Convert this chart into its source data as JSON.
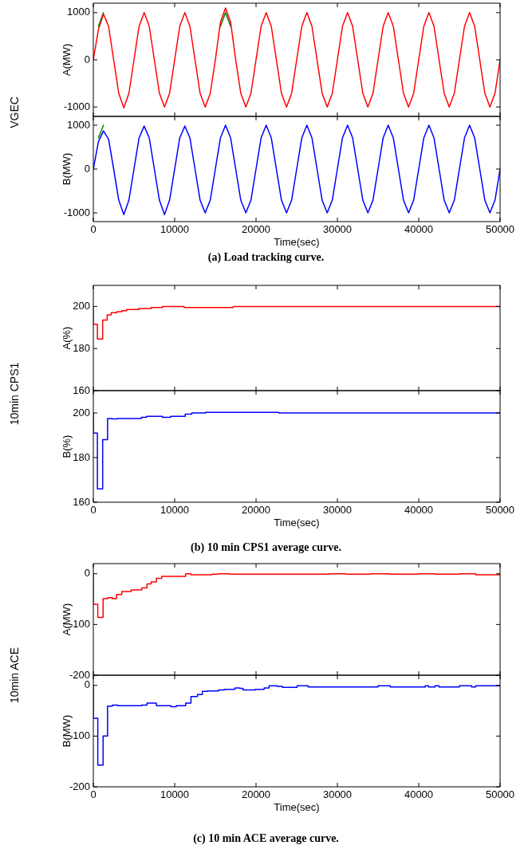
{
  "chart_data": [
    {
      "type": "line",
      "ylabel": "A(MW)",
      "annotations": [
        "VGEC"
      ],
      "tick_labels": "y",
      "xlim": [
        0,
        50000
      ],
      "xticks": [
        0,
        10000,
        20000,
        30000,
        40000,
        50000
      ],
      "ylim": [
        -1200,
        1200
      ],
      "yticks": [
        -1000,
        0,
        1000
      ],
      "x": [
        0,
        625,
        1250,
        1875,
        2500,
        3125,
        3750,
        4375,
        5000,
        5625,
        6250,
        6875,
        7500,
        8125,
        8750,
        9375,
        10000,
        10625,
        11250,
        11875,
        12500,
        13125,
        13750,
        14375,
        15000,
        15625,
        16250,
        16875,
        17500,
        18125,
        18750,
        19375,
        20000,
        20625,
        21250,
        21875,
        22500,
        23125,
        23750,
        24375,
        25000,
        25625,
        26250,
        26875,
        27500,
        28125,
        28750,
        29375,
        30000,
        30625,
        31250,
        31875,
        32500,
        33125,
        33750,
        34375,
        35000,
        35625,
        36250,
        36875,
        37500,
        38125,
        38750,
        39375,
        40000,
        40625,
        41250,
        41875,
        42500,
        43125,
        43750,
        44375,
        45000,
        45625,
        46250,
        46875,
        47500,
        48125,
        48750,
        49375,
        50000
      ],
      "series": [
        {
          "color": "#008000",
          "values": [
            null,
            710,
            1000,
            null,
            null,
            null,
            null,
            null,
            null,
            null,
            null,
            null,
            null,
            null,
            null,
            null,
            null,
            null,
            null,
            null,
            null,
            null,
            null,
            null,
            null,
            710,
            1000,
            710,
            null,
            null,
            null,
            null,
            null,
            null,
            null,
            null,
            null,
            null,
            null,
            null,
            null,
            null,
            null,
            null,
            null,
            null,
            null,
            null,
            null,
            null,
            null,
            null,
            null,
            null,
            null,
            null,
            null,
            null,
            null,
            null,
            null,
            null,
            null,
            null,
            null,
            null,
            null,
            null,
            null,
            null,
            null,
            null,
            null,
            null,
            null,
            null,
            null,
            null,
            null,
            null,
            null
          ]
        },
        {
          "color": "#ff0000",
          "values": [
            0,
            640,
            970,
            710,
            0,
            -710,
            -1020,
            -710,
            0,
            710,
            1000,
            710,
            0,
            -710,
            -1000,
            -710,
            0,
            710,
            1000,
            710,
            0,
            -710,
            -1000,
            -710,
            0,
            800,
            1100,
            800,
            0,
            -710,
            -1000,
            -710,
            0,
            710,
            1000,
            710,
            0,
            -710,
            -1000,
            -710,
            0,
            710,
            1000,
            710,
            0,
            -710,
            -1000,
            -710,
            0,
            710,
            1000,
            710,
            0,
            -710,
            -1000,
            -710,
            0,
            710,
            1000,
            710,
            0,
            -710,
            -1000,
            -710,
            0,
            710,
            1000,
            710,
            0,
            -710,
            -1000,
            -710,
            0,
            710,
            1000,
            710,
            0,
            -710,
            -1000,
            -710,
            0
          ]
        }
      ]
    },
    {
      "type": "line",
      "ylabel": "B(MW)",
      "xlabel": "Time(sec)",
      "annotations": [
        "(a) Load tracking curve."
      ],
      "xlim": [
        0,
        50000
      ],
      "xticks": [
        0,
        10000,
        20000,
        30000,
        40000,
        50000
      ],
      "ylim": [
        -1200,
        1200
      ],
      "yticks": [
        -1000,
        0,
        1000
      ],
      "x": [
        0,
        625,
        1250,
        1875,
        2500,
        3125,
        3750,
        4375,
        5000,
        5625,
        6250,
        6875,
        7500,
        8125,
        8750,
        9375,
        10000,
        10625,
        11250,
        11875,
        12500,
        13125,
        13750,
        14375,
        15000,
        15625,
        16250,
        16875,
        17500,
        18125,
        18750,
        19375,
        20000,
        20625,
        21250,
        21875,
        22500,
        23125,
        23750,
        24375,
        25000,
        25625,
        26250,
        26875,
        27500,
        28125,
        28750,
        29375,
        30000,
        30625,
        31250,
        31875,
        32500,
        33125,
        33750,
        34375,
        35000,
        35625,
        36250,
        36875,
        37500,
        38125,
        38750,
        39375,
        40000,
        40625,
        41250,
        41875,
        42500,
        43125,
        43750,
        44375,
        45000,
        45625,
        46250,
        46875,
        47500,
        48125,
        48750,
        49375,
        50000
      ],
      "series": [
        {
          "color": "#008000",
          "values": [
            null,
            710,
            1000,
            null,
            null,
            null,
            null,
            null,
            null,
            null,
            null,
            null,
            null,
            null,
            null,
            null,
            null,
            null,
            null,
            null,
            null,
            null,
            null,
            null,
            null,
            null,
            null,
            null,
            null,
            null,
            null,
            null,
            null,
            null,
            null,
            null,
            null,
            null,
            null,
            null,
            null,
            null,
            null,
            null,
            null,
            null,
            null,
            null,
            null,
            null,
            null,
            null,
            null,
            null,
            null,
            null,
            null,
            null,
            null,
            null,
            null,
            null,
            null,
            null,
            null,
            null,
            null,
            null,
            null,
            null,
            null,
            null,
            null,
            null,
            null,
            null,
            null,
            null,
            null,
            null,
            null
          ]
        },
        {
          "color": "#0000ff",
          "values": [
            0,
            620,
            870,
            680,
            0,
            -710,
            -1040,
            -710,
            0,
            710,
            980,
            710,
            0,
            -710,
            -1040,
            -710,
            0,
            710,
            980,
            710,
            0,
            -710,
            -1000,
            -710,
            0,
            710,
            1000,
            710,
            0,
            -710,
            -1000,
            -710,
            0,
            710,
            1000,
            710,
            0,
            -710,
            -1000,
            -710,
            0,
            710,
            1000,
            710,
            0,
            -710,
            -1000,
            -710,
            0,
            710,
            1000,
            710,
            0,
            -710,
            -1000,
            -710,
            0,
            710,
            1000,
            710,
            0,
            -710,
            -1000,
            -710,
            0,
            710,
            1000,
            710,
            0,
            -710,
            -1000,
            -710,
            0,
            710,
            1000,
            710,
            0,
            -710,
            -1000,
            -710,
            0
          ]
        }
      ]
    },
    {
      "type": "step",
      "ylabel": "A(%)",
      "annotations": [
        "10min CPS1"
      ],
      "tick_labels": "y",
      "xlim": [
        0,
        50000
      ],
      "xticks": [
        0,
        10000,
        20000,
        30000,
        40000,
        50000
      ],
      "ylim": [
        160,
        210
      ],
      "yticks": [
        160,
        180,
        200
      ],
      "x": [
        0,
        500,
        1150,
        1700,
        2200,
        2900,
        3500,
        4100,
        5600,
        7100,
        8500,
        11150,
        17200,
        17900,
        50000
      ],
      "series": [
        {
          "color": "#ff0000",
          "values": [
            200,
            191.5,
            184.5,
            193.5,
            196,
            197,
            197.5,
            198,
            198.5,
            199,
            199.5,
            200,
            199.5,
            200,
            200
          ]
        }
      ]
    },
    {
      "type": "step",
      "ylabel": "B(%)",
      "xlabel": "Time(sec)",
      "annotations": [
        "(b) 10 min CPS1 average curve."
      ],
      "xlim": [
        0,
        50000
      ],
      "xticks": [
        0,
        10000,
        20000,
        30000,
        40000,
        50000
      ],
      "ylim": [
        160,
        210
      ],
      "yticks": [
        160,
        180,
        200
      ],
      "x": [
        0,
        500,
        1150,
        1750,
        2300,
        2950,
        5900,
        6550,
        8500,
        9500,
        11300,
        12100,
        13800,
        22800,
        23400,
        50000
      ],
      "series": [
        {
          "color": "#0000ff",
          "values": [
            200,
            191,
            166,
            188,
            197.5,
            197.3,
            197.5,
            198,
            198.5,
            198,
            198.5,
            199.5,
            200,
            200.3,
            200,
            200
          ]
        }
      ]
    },
    {
      "type": "step",
      "ylabel": "A(MW)",
      "annotations": [
        "10min ACE"
      ],
      "tick_labels": "y",
      "xlim": [
        0,
        50000
      ],
      "xticks": [
        0,
        10000,
        20000,
        30000,
        40000,
        50000
      ],
      "ylim": [
        -200,
        20
      ],
      "yticks": [
        -200,
        -100,
        0
      ],
      "x": [
        0,
        550,
        1200,
        1750,
        2350,
        2850,
        3500,
        4650,
        5950,
        6600,
        7100,
        7750,
        8400,
        11350,
        12000,
        14600,
        15400,
        16700,
        29000,
        31000,
        34000,
        36500,
        40000,
        42000,
        45000,
        47000,
        49700,
        50000
      ],
      "series": [
        {
          "color": "#ff0000",
          "values": [
            0,
            -60,
            -86,
            -49,
            -47,
            -49,
            -41,
            -35,
            -32,
            -28,
            -20,
            -16,
            -9,
            -5,
            0,
            -2,
            -1,
            0,
            -1,
            0,
            -1,
            0,
            -1,
            0,
            -1,
            0,
            -2,
            -2
          ]
        }
      ]
    },
    {
      "type": "step",
      "ylabel": "B(MW)",
      "xlabel": "Time(sec)",
      "annotations": [
        "(c) 10 min ACE average curve."
      ],
      "xlim": [
        0,
        50000
      ],
      "xticks": [
        0,
        10000,
        20000,
        30000,
        40000,
        50000
      ],
      "ylim": [
        -200,
        20
      ],
      "yticks": [
        -200,
        -100,
        0
      ],
      "x": [
        0,
        550,
        1200,
        1750,
        2350,
        3000,
        5950,
        6600,
        7750,
        9550,
        10200,
        11350,
        12000,
        12800,
        13400,
        14050,
        15400,
        16100,
        17400,
        18000,
        18400,
        19900,
        21000,
        21600,
        22600,
        23250,
        25050,
        26400,
        35000,
        36500,
        40800,
        41200,
        42000,
        42500,
        45000,
        46500,
        47000,
        47700,
        50000
      ],
      "series": [
        {
          "color": "#0000ff",
          "values": [
            0,
            -65,
            -157,
            -100,
            -41,
            -39,
            -40,
            -39,
            -35,
            -40,
            -42,
            -40,
            -35,
            -22,
            -18,
            -12,
            -11,
            -9,
            -8,
            -5,
            -6,
            -9,
            -8,
            -5,
            -1,
            -2,
            -4,
            -1,
            -3,
            -1,
            -3,
            -1,
            -3,
            -1,
            -3,
            -1,
            -3,
            -1,
            -1
          ]
        }
      ]
    }
  ]
}
